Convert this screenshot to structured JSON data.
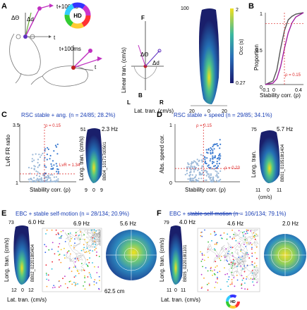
{
  "panel_a": {
    "label": "A",
    "hd_wheel_label": "HD",
    "t_label": "t",
    "t100_label": "t+100ms",
    "t100_label2": "t+100ms",
    "dtheta": "ΔΘ",
    "dd": "Δd",
    "dtheta2": "ΔΘ",
    "dd2": "Δd",
    "axis_f": "F",
    "axis_b": "B",
    "axis_l": "L",
    "axis_r": "R",
    "ylabel": "Linear tran. (cm/s)",
    "xlabel": "Lat. tran. (cm/s)",
    "heat_ytick_top": "100",
    "heat_xticks": [
      "20",
      "0",
      "20"
    ],
    "cbar_top": "2",
    "cbar_bottom": "0.27",
    "cbar_label": "Occ (s)"
  },
  "panel_b": {
    "label": "B",
    "ylabel": "Proportion",
    "xlabel": "Stability corr. (ρ)",
    "yticks": [
      "0",
      "0.5",
      "1"
    ],
    "xticks": [
      "-0.1",
      "0",
      "0.4"
    ],
    "annotation": "ρ = 0.15"
  },
  "panel_c": {
    "label": "C",
    "title": "RSC stable + ang. (n = 24/85; 28.2%)",
    "ylabel": "LvR FR ratio",
    "xlabel": "Stability corr. (ρ)",
    "yticks": [
      "1",
      "3.5"
    ],
    "xticks": [
      "-0.2",
      "0",
      "0.2",
      "0.4",
      "0.6"
    ],
    "rho_label": "ρ = 0.15",
    "lvr_label": "LvR = 1.34",
    "heat_ytick_top": "51",
    "heat_rate": "2.3 Hz",
    "heat_ylabel": "Long. tran. (cm/s)",
    "heat_id": "BB04_101717d0501",
    "heat_xticks": [
      "9",
      "0",
      "9"
    ]
  },
  "panel_d": {
    "label": "D",
    "title": "RSC stable + speed (n = 29/85; 34.1%)",
    "ylabel": "Abs. speed cor.",
    "xlabel": "Stability corr. (ρ)",
    "yticks": [
      "0",
      "1"
    ],
    "xticks": [
      "-0.2",
      "0",
      "0.2",
      "0.4",
      "0.6"
    ],
    "rho_label": "ρ = 0.15",
    "rho2_label": "ρ = 0.23",
    "heat_ytick_top": "75",
    "heat_rate": "5.7 Hz",
    "heat_ylabel": "Long. tran.",
    "heat_id": "BB01_010518t1404",
    "heat_xticks": [
      "11",
      "0",
      "11"
    ],
    "heat_xlabel": "(cm/s)"
  },
  "panel_e": {
    "label": "E",
    "title": "EBC + stable self-motion (n = 28/134; 20.9%)",
    "ytick_top": "73",
    "rate1": "6.0 Hz",
    "rate2": "6.9 Hz",
    "rate3": "5.6 Hz",
    "ylabel": "Long. tran. (cm/s)",
    "xlabel": "Lat. tran. (cm/s)",
    "xticks": [
      "12",
      "0",
      "12"
    ],
    "heat_id": "BB02_022018t0404",
    "scale_label": "62.5 cm"
  },
  "panel_f": {
    "label": "F",
    "title_a": "EBC + ",
    "title_strike": "stable self-motion",
    "title_b": " (n = 106/134; 79.1%)",
    "ytick_top": "79",
    "rate1": "4.0 Hz",
    "rate2": "4.6 Hz",
    "rate3": "2.0 Hz",
    "ylabel": "Long. tran. (cm/s)",
    "xlabel": "Lat. tran. (cm/s)",
    "xticks": [
      "11",
      "0",
      "11"
    ],
    "heat_id": "BB05_022018t1101",
    "hd_label": "HD"
  },
  "chart_data": [
    {
      "type": "line",
      "panel": "B",
      "xlabel": "Stability corr. (ρ)",
      "ylabel": "Proportion",
      "xlim": [
        -0.1,
        0.4
      ],
      "ylim": [
        0,
        1
      ],
      "series": [
        {
          "color": "#555555",
          "x": [
            -0.1,
            0.0,
            0.05,
            0.1,
            0.15,
            0.2,
            0.25,
            0.3,
            0.4
          ],
          "y": [
            0,
            0.05,
            0.2,
            0.5,
            0.75,
            0.9,
            0.95,
            0.98,
            1.0
          ]
        },
        {
          "color": "#a020a0",
          "x": [
            -0.1,
            0.0,
            0.05,
            0.1,
            0.15,
            0.2,
            0.25,
            0.3,
            0.4
          ],
          "y": [
            0,
            0.02,
            0.08,
            0.25,
            0.5,
            0.72,
            0.86,
            0.94,
            1.0
          ]
        }
      ],
      "threshold_x": 0.15,
      "threshold_y": 0.85
    },
    {
      "type": "scatter",
      "panel": "C",
      "xlabel": "Stability corr. (ρ)",
      "ylabel": "LvR FR ratio",
      "xlim": [
        -0.2,
        0.6
      ],
      "ylim": [
        1,
        3.5
      ],
      "threshold_x": 0.15,
      "threshold_y": 1.34
    },
    {
      "type": "scatter",
      "panel": "D",
      "xlabel": "Stability corr. (ρ)",
      "ylabel": "Abs. speed cor.",
      "xlim": [
        -0.2,
        0.6
      ],
      "ylim": [
        0,
        1
      ],
      "threshold_x": 0.15,
      "threshold_y": 0.23
    }
  ]
}
